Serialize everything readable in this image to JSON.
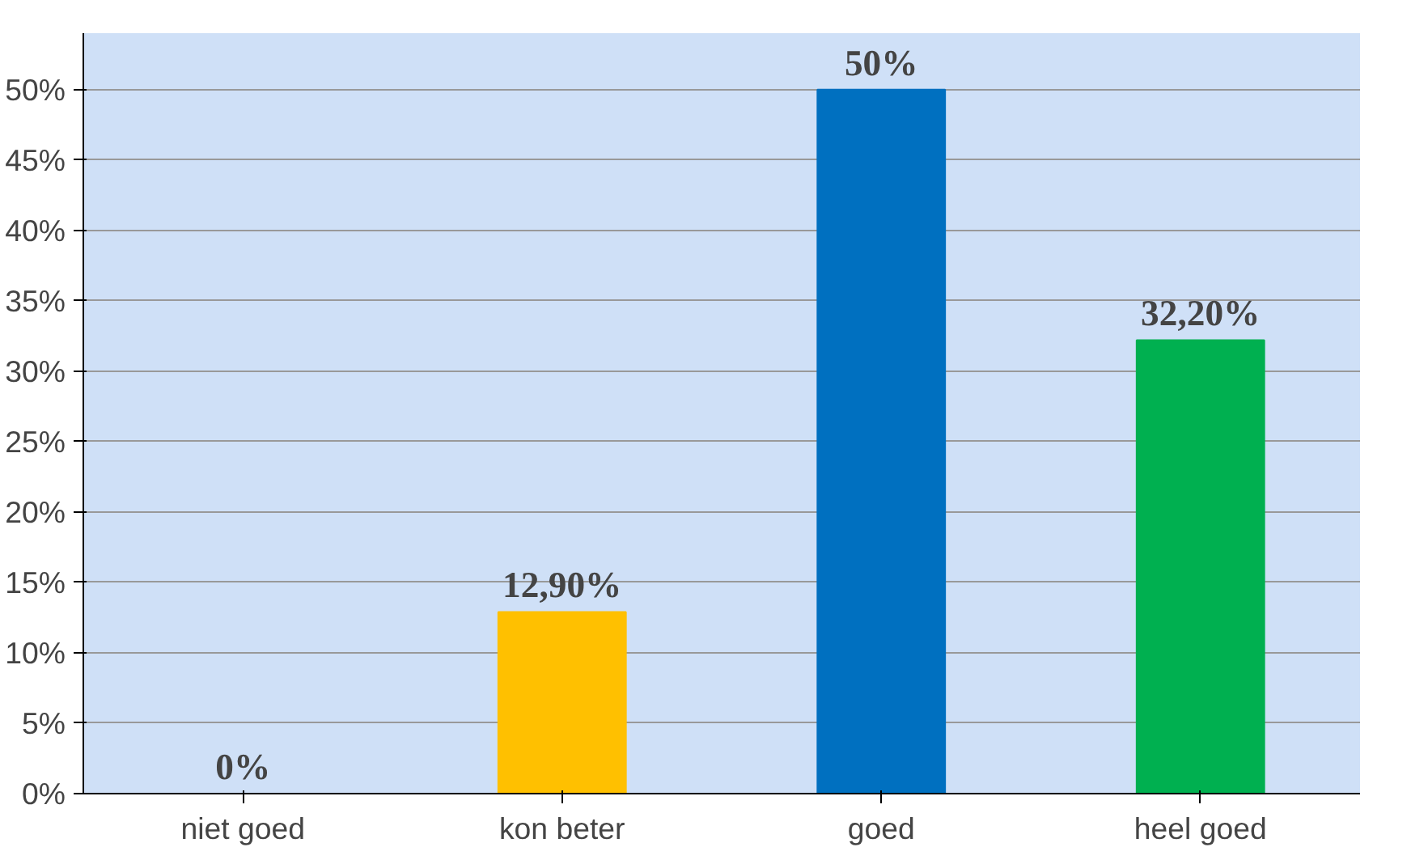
{
  "chart_data": {
    "type": "bar",
    "categories": [
      "niet goed",
      "kon beter",
      "goed",
      "heel goed"
    ],
    "values": [
      0,
      12.9,
      50,
      32.2
    ],
    "colors": [
      "#a50000",
      "#ffc000",
      "#0070c0",
      "#00b050"
    ],
    "value_labels": [
      "0%",
      "12,90%",
      "50%",
      "32,20%"
    ],
    "ylim": [
      0,
      50
    ],
    "yticks": [
      {
        "value": 0,
        "label": "0%"
      },
      {
        "value": 5,
        "label": "5%"
      },
      {
        "value": 10,
        "label": "10%"
      },
      {
        "value": 15,
        "label": "15%"
      },
      {
        "value": 20,
        "label": "20%"
      },
      {
        "value": 25,
        "label": "25%"
      },
      {
        "value": 30,
        "label": "30%"
      },
      {
        "value": 35,
        "label": "35%"
      },
      {
        "value": 40,
        "label": "40%"
      },
      {
        "value": 45,
        "label": "45%"
      },
      {
        "value": 50,
        "label": "50%"
      }
    ],
    "grid": "y"
  }
}
